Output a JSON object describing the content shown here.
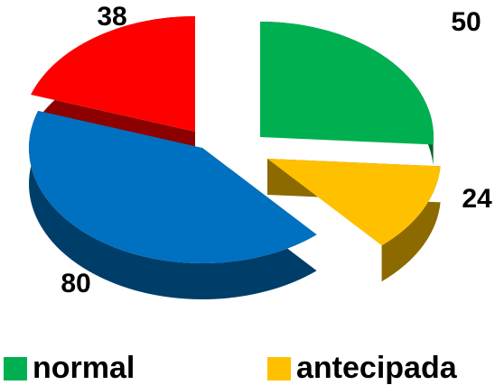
{
  "chart_data": {
    "type": "pie",
    "title": "",
    "categories": [
      "normal",
      "antecipada",
      "",
      ""
    ],
    "values": [
      50,
      24,
      80,
      38
    ],
    "colors": [
      "#00b050",
      "#ffc000",
      "#0070c0",
      "#ff0000"
    ],
    "exploded": true,
    "three_d": true,
    "legend": {
      "position": "bottom",
      "entries": [
        "normal",
        "antecipada"
      ]
    }
  }
}
